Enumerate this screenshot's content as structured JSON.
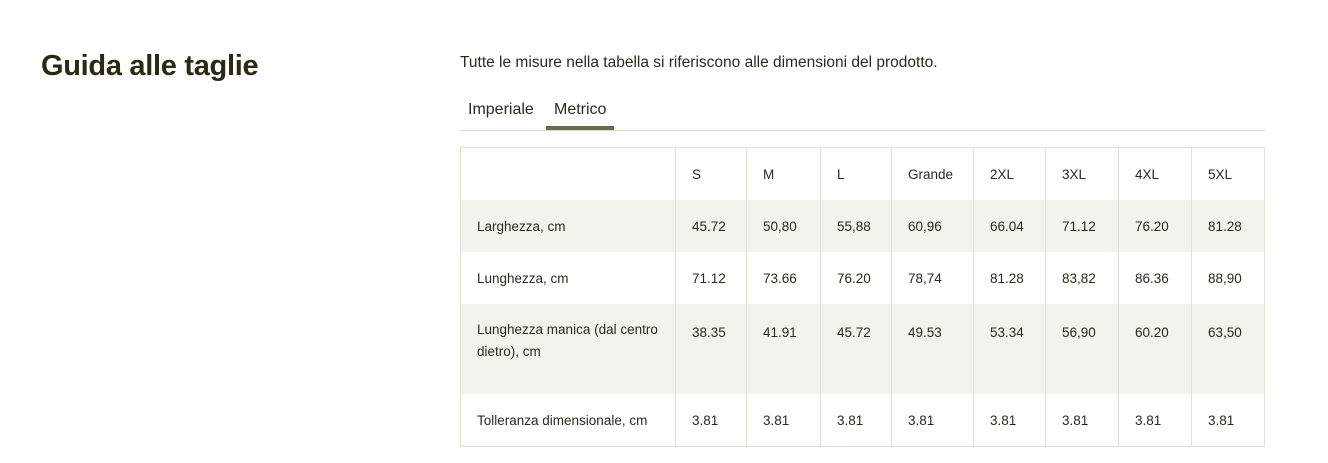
{
  "title": "Guida alle taglie",
  "intro": "Tutte le misure nella tabella si riferiscono alle dimensioni del prodotto.",
  "tabs": [
    {
      "label": "Imperiale",
      "active": false
    },
    {
      "label": "Metrico",
      "active": true
    }
  ],
  "table": {
    "headers": [
      "",
      "S",
      "M",
      "L",
      "Grande",
      "2XL",
      "3XL",
      "4XL",
      "5XL"
    ],
    "rows": [
      {
        "label": "Larghezza, cm",
        "values": [
          "45.72",
          "50,80",
          "55,88",
          "60,96",
          "66.04",
          "71.12",
          "76.20",
          "81.28"
        ]
      },
      {
        "label": "Lunghezza, cm",
        "values": [
          "71.12",
          "73.66",
          "76.20",
          "78,74",
          "81.28",
          "83,82",
          "86.36",
          "88,90"
        ]
      },
      {
        "label": "Lunghezza manica (dal centro dietro), cm",
        "values": [
          "38.35",
          "41.91",
          "45.72",
          "49.53",
          "53.34",
          "56,90",
          "60.20",
          "63,50"
        ]
      },
      {
        "label": "Tolleranza dimensionale, cm",
        "values": [
          "3.81",
          "3.81",
          "3.81",
          "3.81",
          "3.81",
          "3.81",
          "3.81",
          "3.81"
        ]
      }
    ]
  },
  "colors": {
    "accent": "#6b6a4e",
    "row_alt": "#f3f3ee",
    "title": "#2a2a14"
  }
}
